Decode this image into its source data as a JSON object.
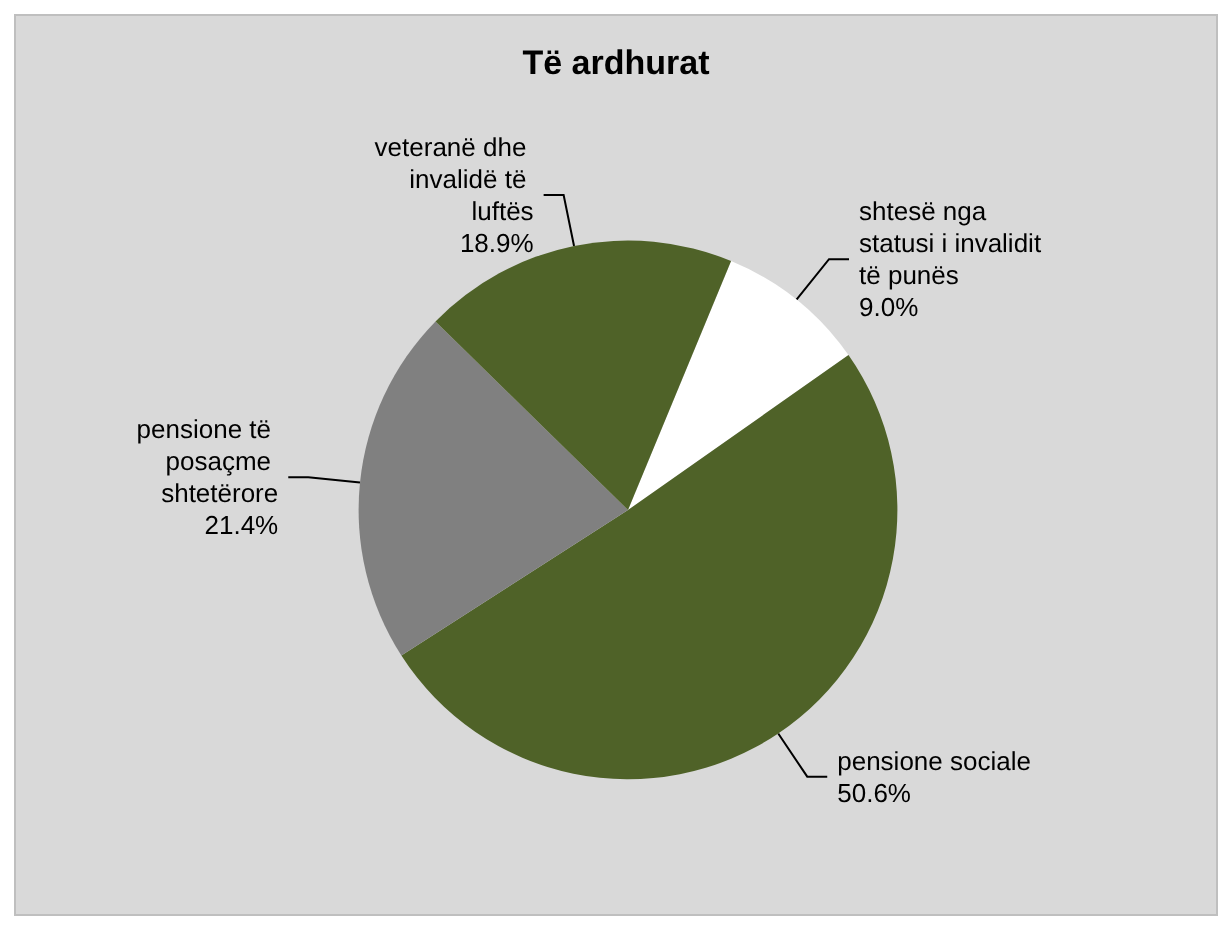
{
  "chart_data": {
    "type": "pie",
    "title": "Të ardhurat",
    "categories": [
      "shtesë nga statusi i invalidit të punës",
      "pensione sociale",
      "pensione të posaçme shtetërore",
      "veteranë dhe invalidë të luftës"
    ],
    "values": [
      9.0,
      50.6,
      21.4,
      18.9
    ],
    "value_labels": [
      "9.0%",
      "50.6%",
      "21.4%",
      "18.9%"
    ],
    "colors": [
      "#ffffff",
      "#4f6228",
      "#808080",
      "#4f6228"
    ],
    "legend": false
  }
}
